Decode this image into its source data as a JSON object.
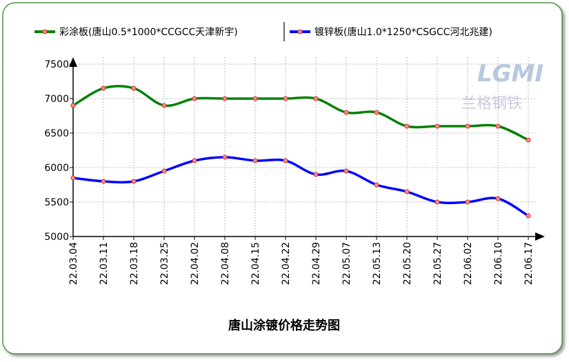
{
  "chart_data": {
    "type": "line",
    "title": "唐山涂镀价格走势图",
    "logo_text": "LGMI",
    "logo_subtext": "兰格钢铁",
    "categories": [
      "22.03.04",
      "22.03.11",
      "22.03.18",
      "22.03.25",
      "22.04.02",
      "22.04.08",
      "22.04.15",
      "22.04.22",
      "22.04.29",
      "22.05.07",
      "22.05.13",
      "22.05.20",
      "22.05.27",
      "22.06.02",
      "22.06.10",
      "22.06.17"
    ],
    "series": [
      {
        "name": "彩涂板(唐山0.5*1000*CCGCC天津新宇)",
        "color": "#008000",
        "values": [
          6900,
          7150,
          7150,
          6900,
          7000,
          7000,
          7000,
          7000,
          7000,
          6800,
          6800,
          6600,
          6600,
          6600,
          6600,
          6400
        ]
      },
      {
        "name": "镀锌板(唐山1.0*1250*CSGCC河北兆建)",
        "color": "#0000ff",
        "values": [
          5850,
          5800,
          5800,
          5950,
          6100,
          6150,
          6100,
          6100,
          5900,
          5950,
          5750,
          5650,
          5500,
          5500,
          5550,
          5300
        ]
      }
    ],
    "ylim": [
      5000,
      7500
    ],
    "yticks": [
      5000,
      5500,
      6000,
      6500,
      7000,
      7500
    ],
    "grid": true
  }
}
